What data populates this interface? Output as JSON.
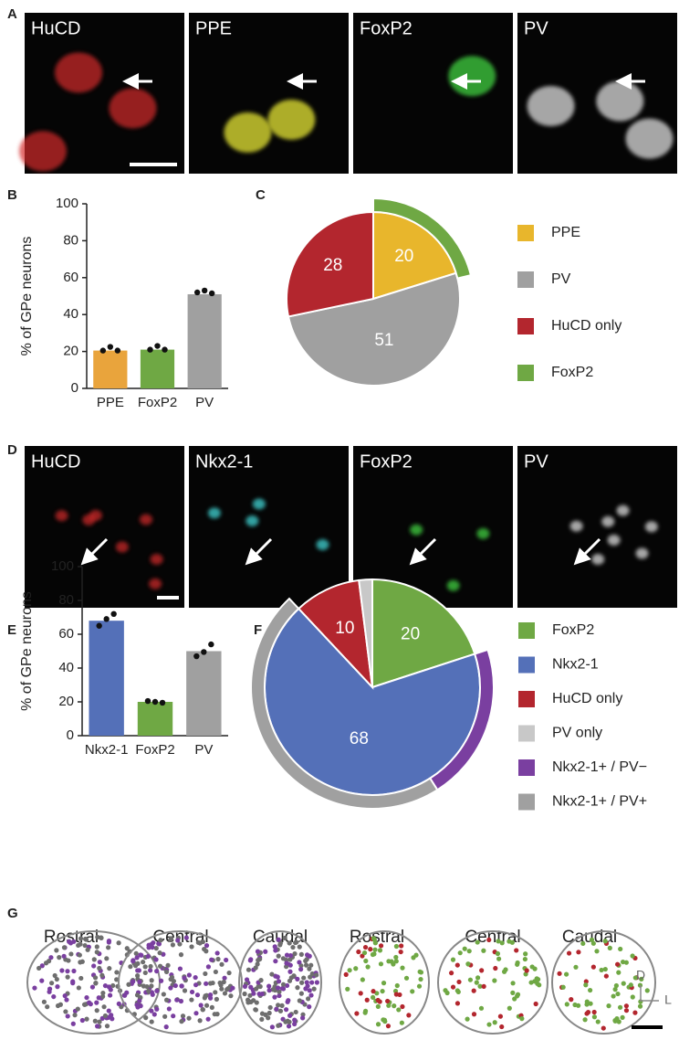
{
  "panel_labels": [
    "A",
    "B",
    "C",
    "D",
    "E",
    "F",
    "G"
  ],
  "image_rows": [
    {
      "labels": [
        "HuCD",
        "PPE",
        "FoxP2",
        "PV"
      ]
    },
    {
      "labels": [
        "HuCD",
        "Nkx2-1",
        "FoxP2",
        "PV"
      ]
    }
  ],
  "chart_data": [
    {
      "type": "bar",
      "ylabel": "% of GPe neurons",
      "categories": [
        "PPE",
        "FoxP2",
        "PV"
      ],
      "values": [
        20.5,
        21,
        51
      ],
      "colors": [
        "#e9a43c",
        "#6fa844",
        "#a0a0a0"
      ],
      "points": [
        [
          20.5,
          22.5,
          20.5
        ],
        [
          21,
          23,
          21
        ],
        [
          52,
          53,
          51.5
        ]
      ],
      "ylim": [
        0,
        100
      ],
      "yticks": [
        0,
        20,
        40,
        60,
        80,
        100
      ]
    },
    {
      "type": "pie",
      "categories": [
        "PPE",
        "PV",
        "HuCD only"
      ],
      "values": [
        20,
        51,
        28
      ],
      "colors": [
        "#e8b62c",
        "#a0a0a0",
        "#b3262e"
      ],
      "label_slices": [
        0,
        1,
        2
      ],
      "outer": {
        "parent": 0,
        "categories": [
          "FoxP2"
        ],
        "values": [
          21
        ],
        "colors": [
          "#6fa844"
        ]
      }
    },
    {
      "type": "bar",
      "ylabel": "% of GPe neurons",
      "categories": [
        "Nkx2-1",
        "FoxP2",
        "PV"
      ],
      "values": [
        68,
        20,
        50
      ],
      "colors": [
        "#5470b8",
        "#6fa844",
        "#a0a0a0"
      ],
      "points": [
        [
          65,
          69,
          72
        ],
        [
          20.5,
          20,
          19.5
        ],
        [
          47,
          49.5,
          54
        ]
      ],
      "ylim": [
        0,
        100
      ],
      "yticks": [
        0,
        20,
        40,
        60,
        80,
        100
      ]
    },
    {
      "type": "pie",
      "categories": [
        "FoxP2",
        "Nkx2-1",
        "HuCD only",
        "PV only"
      ],
      "values": [
        20,
        68,
        10,
        2
      ],
      "colors": [
        "#6fa844",
        "#5470b8",
        "#b3262e",
        "#c8c8c8"
      ],
      "label_slices": [
        0,
        1,
        2
      ],
      "outer": {
        "parent": 1,
        "categories": [
          "Nkx2-1+ / PV−",
          "Nkx2-1+ / PV+"
        ],
        "values": [
          21,
          47
        ],
        "colors": [
          "#7a3fa0",
          "#a0a0a0"
        ]
      }
    }
  ],
  "region_maps": {
    "labels": [
      "Rostral",
      "Central",
      "Caudal",
      "Rostral",
      "Central",
      "Caudal"
    ],
    "axis": [
      "D",
      "L"
    ]
  }
}
